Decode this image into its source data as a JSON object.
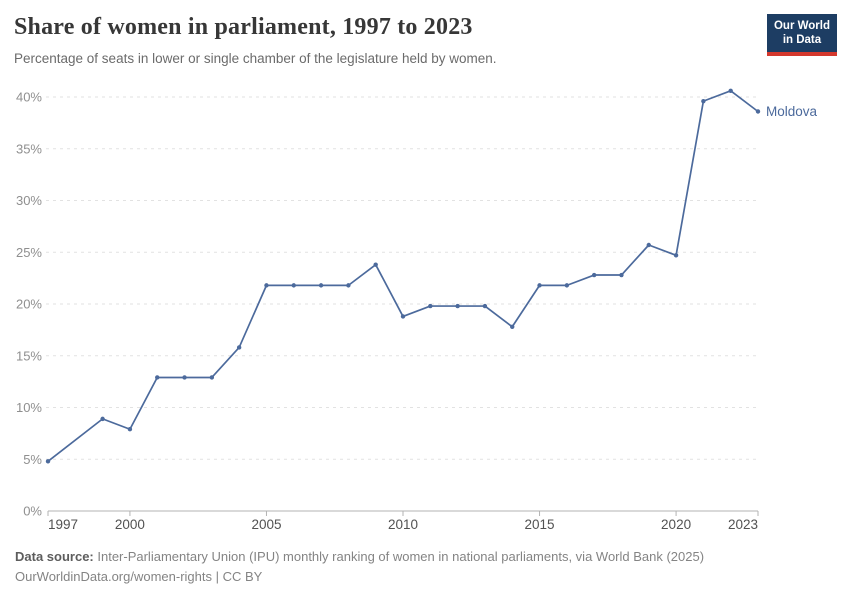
{
  "header": {
    "title": "Share of women in parliament, 1997 to 2023",
    "subtitle": "Percentage of seats in lower or single chamber of the legislature held by women."
  },
  "logo": {
    "line1": "Our World",
    "line2": "in Data",
    "bg_color": "#1d3d63",
    "bar_color": "#d4382d"
  },
  "chart_data": {
    "type": "line",
    "title": "Share of women in parliament, 1997 to 2023",
    "xlabel": "",
    "ylabel": "",
    "x": [
      1997,
      1999,
      2000,
      2001,
      2002,
      2003,
      2004,
      2005,
      2006,
      2007,
      2008,
      2009,
      2010,
      2011,
      2012,
      2013,
      2014,
      2015,
      2016,
      2017,
      2018,
      2019,
      2020,
      2021,
      2022,
      2023
    ],
    "series": [
      {
        "name": "Moldova",
        "color": "#4c6a9c",
        "values": [
          4.8,
          8.9,
          7.9,
          12.9,
          12.9,
          12.9,
          15.8,
          21.8,
          21.8,
          21.8,
          21.8,
          23.8,
          18.8,
          19.8,
          19.8,
          19.8,
          17.8,
          21.8,
          21.8,
          22.8,
          22.8,
          25.7,
          24.7,
          39.6,
          40.6,
          38.6
        ]
      }
    ],
    "xlim": [
      1997,
      2023
    ],
    "ylim": [
      0,
      40
    ],
    "x_ticks": [
      1997,
      2000,
      2005,
      2010,
      2015,
      2020,
      2023
    ],
    "y_ticks": [
      0,
      5,
      10,
      15,
      20,
      25,
      30,
      35,
      40
    ],
    "y_tick_suffix": "%",
    "grid": "horizontal-dashed",
    "legend_position": "end-of-line-label",
    "colors": {
      "gridline": "#e2e2e2",
      "axis_line": "#b3b3b3",
      "y_tick_label": "#8f8f8f",
      "x_tick_label": "#525252"
    }
  },
  "footer": {
    "source_label": "Data source:",
    "source_text": " Inter-Parliamentary Union (IPU) monthly ranking of women in national parliaments, via World Bank (2025)",
    "license_line": "OurWorldinData.org/women-rights | CC BY"
  }
}
